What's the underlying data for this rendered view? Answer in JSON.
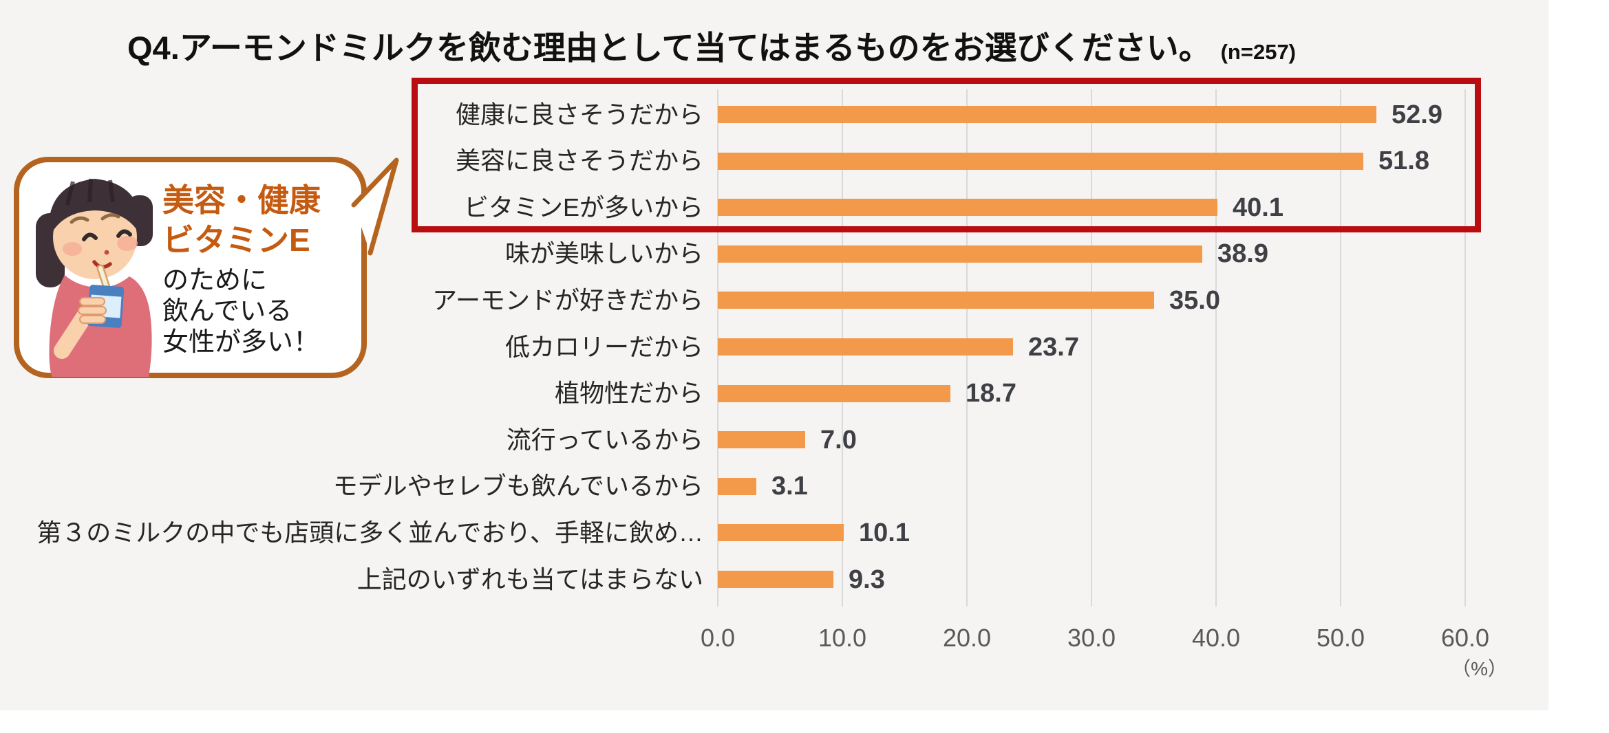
{
  "title": {
    "text": "Q4.アーモンドミルクを飲む理由として当てはまるものをお選びください。",
    "sample": "(n=257)"
  },
  "callout": {
    "emphasis_lines": [
      "美容・健康",
      "ビタミンE"
    ],
    "plain_lines": [
      "のために",
      "飲んでいる",
      "女性が多い！"
    ],
    "illustration": "girl-drinking-milk-carton",
    "border_color": "#b5641f",
    "emphasis_color": "#c55a11"
  },
  "chart_data": {
    "type": "bar",
    "orientation": "horizontal",
    "title": "Q4.アーモンドミルクを飲む理由として当てはまるものをお選びください。(n=257)",
    "categories": [
      "健康に良さそうだから",
      "美容に良さそうだから",
      "ビタミンEが多いから",
      "味が美味しいから",
      "アーモンドが好きだから",
      "低カロリーだから",
      "植物性だから",
      "流行っているから",
      "モデルやセレブも飲んでいるから",
      "第３のミルクの中でも店頭に多く並んでおり、手軽に飲め…",
      "上記のいずれも当てはまらない"
    ],
    "values": [
      52.9,
      51.8,
      40.1,
      38.9,
      35.0,
      23.7,
      18.7,
      7.0,
      3.1,
      10.1,
      9.3
    ],
    "x_ticks": [
      "0.0",
      "10.0",
      "20.0",
      "30.0",
      "40.0",
      "50.0",
      "60.0"
    ],
    "xlim": [
      0,
      60
    ],
    "x_axis_unit": "（%）",
    "xlabel": "",
    "ylabel": "",
    "grid": true,
    "value_labels": true,
    "bar_color": "#F3994A",
    "gridline_color": "#d9d9d9",
    "highlight": {
      "rows": [
        0,
        1,
        2
      ],
      "box_color": "#B90D12"
    }
  }
}
